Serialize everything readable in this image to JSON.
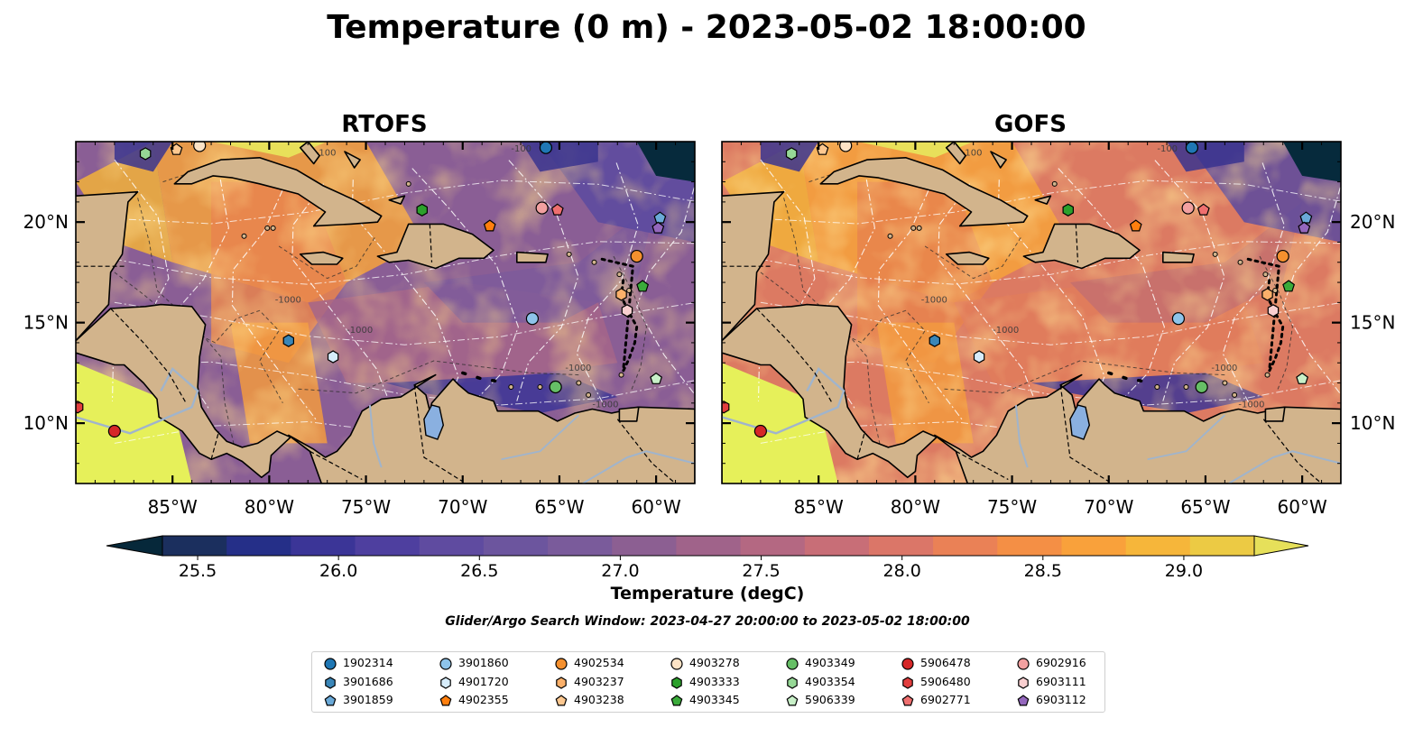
{
  "title": "Temperature (0 m) - 2023-05-02 18:00:00",
  "panels": [
    {
      "title": "RTOFS"
    },
    {
      "title": "GOFS"
    }
  ],
  "map": {
    "lon_range": [
      -90,
      -58
    ],
    "lat_range": [
      7,
      24
    ],
    "lon_ticks": [
      -85,
      -80,
      -75,
      -70,
      -65,
      -60
    ],
    "lat_ticks": [
      10,
      15,
      20
    ],
    "lon_tick_labels": [
      "85°W",
      "80°W",
      "75°W",
      "70°W",
      "65°W",
      "60°W"
    ],
    "lat_tick_labels": [
      "10°N",
      "15°N",
      "20°N"
    ],
    "bathymetry_contour_labels": [
      "-100",
      "-1000"
    ],
    "land_color": "#d2b48c",
    "river_color": "#a0b4cc"
  },
  "colorbar": {
    "label": "Temperature (degC)",
    "min": 25.375,
    "max": 29.25,
    "step": 0.25,
    "ticks": [
      "25.5",
      "26.0",
      "26.5",
      "27.0",
      "27.5",
      "28.0",
      "28.5",
      "29.0"
    ],
    "extend": "both",
    "colors": [
      "#06283a",
      "#1b2f5e",
      "#252f88",
      "#3b3597",
      "#4e3f9f",
      "#5f4ba0",
      "#6c559e",
      "#7a5b9b",
      "#8c5f92",
      "#a0638a",
      "#b46882",
      "#c86e77",
      "#db7668",
      "#ea8156",
      "#f48f45",
      "#f9a13b",
      "#f6b63a",
      "#ecca44",
      "#e6e05a"
    ]
  },
  "search_window": "Glider/Argo Search Window: 2023-04-27 20:00:00 to 2023-05-02 18:00:00",
  "legend": {
    "items": [
      {
        "label": "1902314",
        "color": "#1f77b4",
        "marker": "circle"
      },
      {
        "label": "3901686",
        "color": "#3a86b8",
        "marker": "hexagon"
      },
      {
        "label": "3901859",
        "color": "#6aa9d8",
        "marker": "pentagon"
      },
      {
        "label": "3901860",
        "color": "#8ec4ea",
        "marker": "circle"
      },
      {
        "label": "4901720",
        "color": "#d6ecfa",
        "marker": "hexagon"
      },
      {
        "label": "4902355",
        "color": "#ff7f0e",
        "marker": "pentagon"
      },
      {
        "label": "4902534",
        "color": "#f5902e",
        "marker": "circle"
      },
      {
        "label": "4903237",
        "color": "#fbb06a",
        "marker": "hexagon"
      },
      {
        "label": "4903238",
        "color": "#fdc890",
        "marker": "pentagon"
      },
      {
        "label": "4903278",
        "color": "#fde3c6",
        "marker": "circle"
      },
      {
        "label": "4903333",
        "color": "#2ca02c",
        "marker": "hexagon"
      },
      {
        "label": "4903345",
        "color": "#3aab3a",
        "marker": "pentagon"
      },
      {
        "label": "4903349",
        "color": "#66bf66",
        "marker": "circle"
      },
      {
        "label": "4903354",
        "color": "#96d896",
        "marker": "hexagon"
      },
      {
        "label": "5906339",
        "color": "#c8f0c8",
        "marker": "pentagon"
      },
      {
        "label": "5906478",
        "color": "#d62728",
        "marker": "circle"
      },
      {
        "label": "5906480",
        "color": "#e23e3e",
        "marker": "hexagon"
      },
      {
        "label": "6902771",
        "color": "#ef6f6f",
        "marker": "pentagon"
      },
      {
        "label": "6902916",
        "color": "#f2a0a0",
        "marker": "circle"
      },
      {
        "label": "6903111",
        "color": "#f9cfd0",
        "marker": "hexagon"
      },
      {
        "label": "6903112",
        "color": "#9467bd",
        "marker": "pentagon"
      }
    ]
  },
  "floats": [
    {
      "id": "1902314",
      "lon": -65.7,
      "lat": 23.7
    },
    {
      "id": "3901686",
      "lon": -79.0,
      "lat": 14.1
    },
    {
      "id": "3901859",
      "lon": -59.8,
      "lat": 20.2
    },
    {
      "id": "3901860",
      "lon": -66.4,
      "lat": 15.2
    },
    {
      "id": "4901720",
      "lon": -76.7,
      "lat": 13.3
    },
    {
      "id": "4902355",
      "lon": -68.6,
      "lat": 19.8
    },
    {
      "id": "4902534",
      "lon": -61.0,
      "lat": 18.3
    },
    {
      "id": "4903237",
      "lon": -61.8,
      "lat": 16.4
    },
    {
      "id": "4903238",
      "lon": -84.8,
      "lat": 23.6
    },
    {
      "id": "4903278",
      "lon": -83.6,
      "lat": 23.8
    },
    {
      "id": "4903333",
      "lon": -72.1,
      "lat": 20.6
    },
    {
      "id": "4903345",
      "lon": -60.7,
      "lat": 16.8
    },
    {
      "id": "4903349",
      "lon": -65.2,
      "lat": 11.8
    },
    {
      "id": "4903354",
      "lon": -86.4,
      "lat": 23.4
    },
    {
      "id": "5906339",
      "lon": -60.0,
      "lat": 12.2
    },
    {
      "id": "5906478",
      "lon": -88.0,
      "lat": 9.6
    },
    {
      "id": "5906480",
      "lon": -89.9,
      "lat": 10.8
    },
    {
      "id": "6902771",
      "lon": -65.1,
      "lat": 20.6
    },
    {
      "id": "6902916",
      "lon": -65.9,
      "lat": 20.7
    },
    {
      "id": "6903111",
      "lon": -61.5,
      "lat": 15.6
    },
    {
      "id": "6903112",
      "lon": -59.9,
      "lat": 19.7
    }
  ]
}
